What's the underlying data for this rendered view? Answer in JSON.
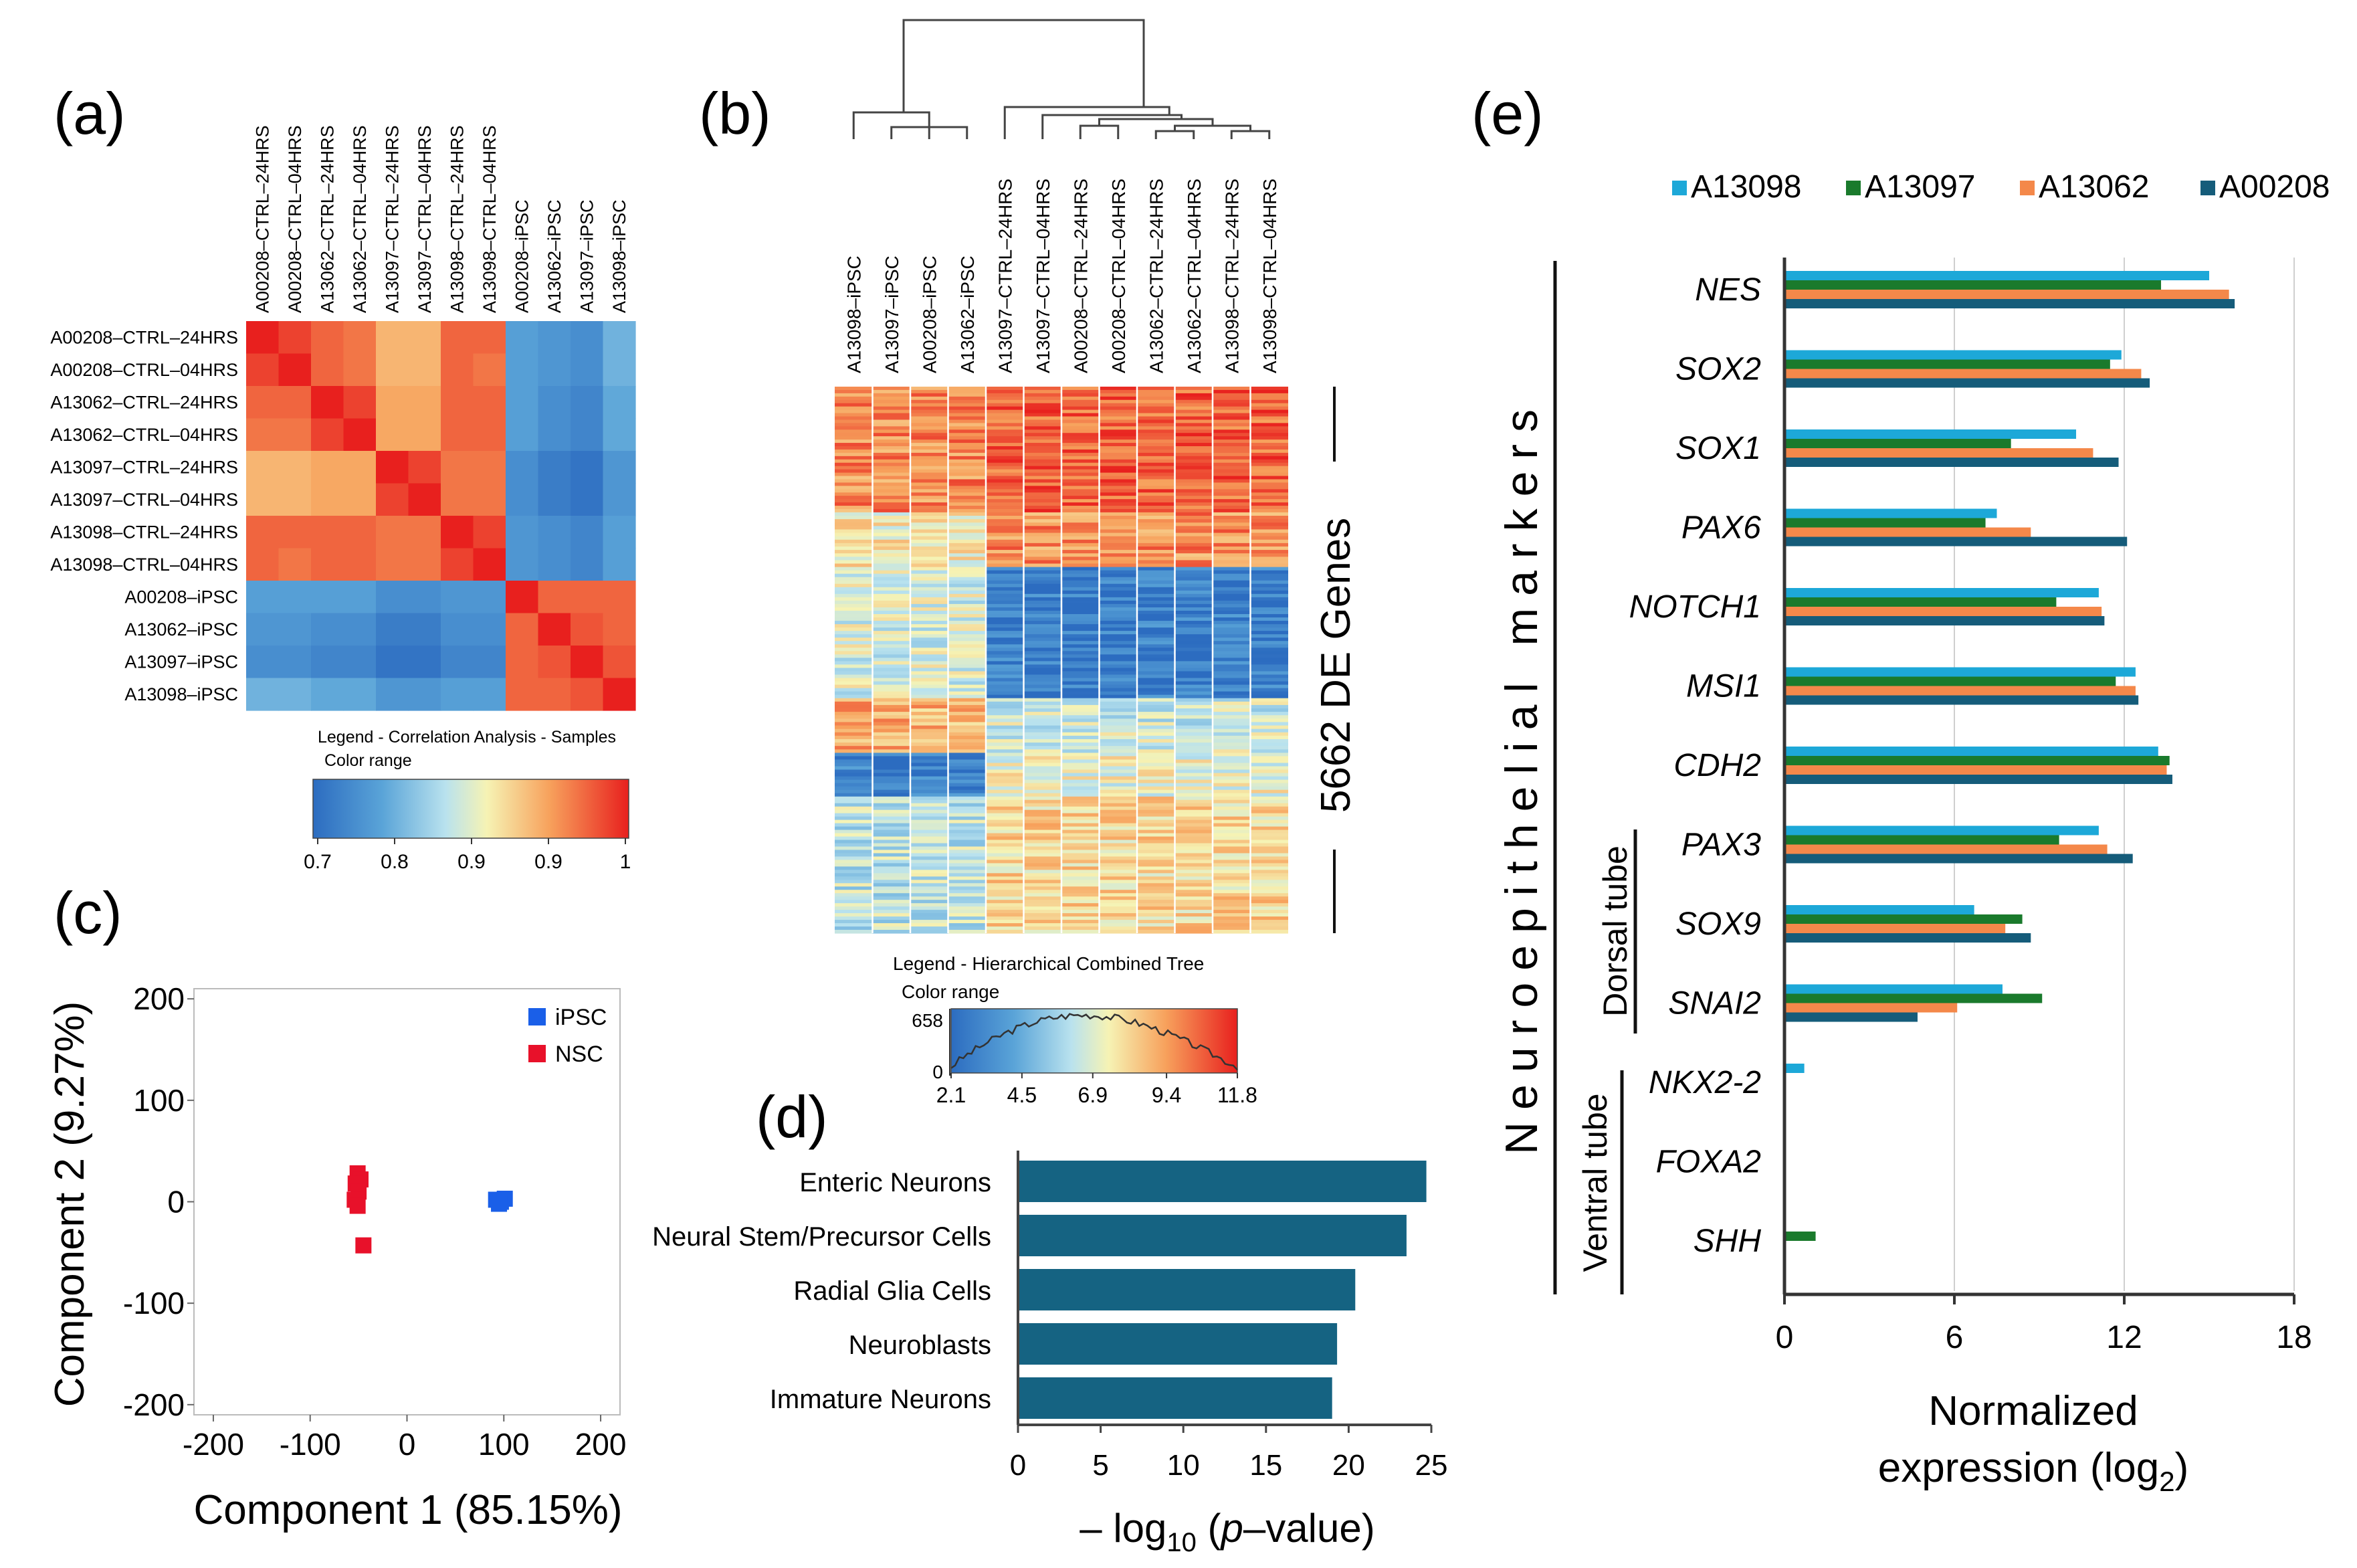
{
  "chart_data": [
    {
      "id": "a",
      "type": "heatmap",
      "panel_label": "(a)",
      "rows": [
        "A00208–CTRL–24HRS",
        "A00208–CTRL–04HRS",
        "A13062–CTRL–24HRS",
        "A13062–CTRL–04HRS",
        "A13097–CTRL–24HRS",
        "A13097–CTRL–04HRS",
        "A13098–CTRL–24HRS",
        "A13098–CTRL–04HRS",
        "A00208–iPSC",
        "A13062–iPSC",
        "A13097–iPSC",
        "A13098–iPSC"
      ],
      "columns": [
        "A00208–CTRL–24HRS",
        "A00208–CTRL–04HRS",
        "A13062–CTRL–24HRS",
        "A13062–CTRL–04HRS",
        "A13097–CTRL–24HRS",
        "A13097–CTRL–04HRS",
        "A13098–CTRL–24HRS",
        "A13098–CTRL–04HRS",
        "A00208–iPSC",
        "A13062–iPSC",
        "A13097–iPSC",
        "A13098–iPSC"
      ],
      "values": [
        [
          1.0,
          0.98,
          0.96,
          0.95,
          0.91,
          0.91,
          0.96,
          0.96,
          0.76,
          0.75,
          0.74,
          0.78
        ],
        [
          0.98,
          1.0,
          0.96,
          0.95,
          0.91,
          0.91,
          0.96,
          0.95,
          0.76,
          0.75,
          0.74,
          0.78
        ],
        [
          0.96,
          0.96,
          1.0,
          0.98,
          0.92,
          0.92,
          0.96,
          0.96,
          0.76,
          0.74,
          0.73,
          0.77
        ],
        [
          0.95,
          0.95,
          0.98,
          1.0,
          0.92,
          0.92,
          0.96,
          0.96,
          0.76,
          0.74,
          0.73,
          0.77
        ],
        [
          0.91,
          0.91,
          0.92,
          0.92,
          1.0,
          0.98,
          0.95,
          0.95,
          0.74,
          0.72,
          0.71,
          0.75
        ],
        [
          0.91,
          0.91,
          0.92,
          0.92,
          0.98,
          1.0,
          0.95,
          0.95,
          0.74,
          0.72,
          0.71,
          0.75
        ],
        [
          0.96,
          0.96,
          0.96,
          0.96,
          0.95,
          0.95,
          1.0,
          0.98,
          0.75,
          0.74,
          0.73,
          0.76
        ],
        [
          0.96,
          0.95,
          0.96,
          0.96,
          0.95,
          0.95,
          0.98,
          1.0,
          0.75,
          0.74,
          0.73,
          0.76
        ],
        [
          0.76,
          0.76,
          0.76,
          0.76,
          0.74,
          0.74,
          0.75,
          0.75,
          1.0,
          0.96,
          0.96,
          0.96
        ],
        [
          0.75,
          0.75,
          0.74,
          0.74,
          0.72,
          0.72,
          0.74,
          0.74,
          0.96,
          1.0,
          0.97,
          0.96
        ],
        [
          0.74,
          0.74,
          0.73,
          0.73,
          0.71,
          0.71,
          0.73,
          0.73,
          0.96,
          0.97,
          1.0,
          0.97
        ],
        [
          0.78,
          0.78,
          0.77,
          0.77,
          0.75,
          0.75,
          0.76,
          0.76,
          0.96,
          0.96,
          0.97,
          1.0
        ]
      ],
      "legend_title": "Legend - Correlation Analysis - Samples",
      "legend_subtitle": "Color range",
      "color_ticks": [
        "0.7",
        "0.8",
        "0.9",
        "0.9",
        "1"
      ],
      "color_range": [
        0.7,
        1.0
      ]
    },
    {
      "id": "b",
      "type": "heatmap",
      "panel_label": "(b)",
      "columns": [
        "A13098–iPSC",
        "A13097–iPSC",
        "A00208–iPSC",
        "A13062–iPSC",
        "A13097–CTRL–24HRS",
        "A13097–CTRL–04HRS",
        "A00208–CTRL–24HRS",
        "A00208–CTRL–04HRS",
        "A13062–CTRL–24HRS",
        "A13062–CTRL–04HRS",
        "A13098–CTRL–24HRS",
        "A13098–CTRL–04HRS"
      ],
      "side_label": "5662 DE Genes",
      "legend_title": "Legend - Hierarchical Combined Tree",
      "legend_subtitle": "Color range",
      "legend_y_ticks": [
        "658",
        "0"
      ],
      "color_ticks": [
        "2.1",
        "4.5",
        "6.9",
        "9.4",
        "11.8"
      ],
      "color_range": [
        2.1,
        11.8
      ],
      "row_blocks": [
        {
          "fraction": 0.23,
          "ipsc": 9.8,
          "nsc": 10.6
        },
        {
          "fraction": 0.1,
          "ipsc": 7.6,
          "nsc": 9.7
        },
        {
          "fraction": 0.24,
          "ipsc": 6.8,
          "nsc": 2.8
        },
        {
          "fraction": 0.1,
          "ipsc": 9.0,
          "nsc": 6.6
        },
        {
          "fraction": 0.08,
          "ipsc": 2.9,
          "nsc": 7.2
        },
        {
          "fraction": 0.25,
          "ipsc": 6.3,
          "nsc": 8.1
        }
      ]
    },
    {
      "id": "c",
      "type": "scatter",
      "panel_label": "(c)",
      "xlabel": "Component  1 (85.15%)",
      "ylabel": "Component  2 (9.27%)",
      "xlim": [
        -220,
        220
      ],
      "ylim": [
        -210,
        210
      ],
      "xticks": [
        "-200",
        "-100",
        "0",
        "100",
        "200"
      ],
      "yticks": [
        "200",
        "100",
        "0",
        "-100",
        "-200"
      ],
      "series": [
        {
          "name": "iPSC",
          "color": "#1a5fe8",
          "points": [
            [
              92,
              2
            ],
            [
              97,
              0
            ],
            [
              101,
              3
            ],
            [
              95,
              -2
            ]
          ]
        },
        {
          "name": "NSC",
          "color": "#e8112a",
          "points": [
            [
              -51,
              28
            ],
            [
              -48,
              22
            ],
            [
              -53,
              18
            ],
            [
              -50,
              10
            ],
            [
              -54,
              2
            ],
            [
              -51,
              -4
            ],
            [
              -45,
              -43
            ]
          ]
        }
      ]
    },
    {
      "id": "d",
      "type": "bar",
      "orientation": "horizontal",
      "panel_label": "(d)",
      "categories": [
        "Enteric Neurons",
        "Neural Stem/Precursor Cells",
        "Radial Glia Cells",
        "Neuroblasts",
        "Immature Neurons"
      ],
      "values": [
        24.7,
        23.5,
        20.4,
        19.3,
        19.0
      ],
      "xlim": [
        0,
        25
      ],
      "xticks": [
        "0",
        "5",
        "10",
        "15",
        "20",
        "25"
      ],
      "bar_color": "#156382",
      "xlabel_prefix": "– log",
      "xlabel_sub": "10",
      "xlabel_mid": " (",
      "xlabel_italic": "p",
      "xlabel_suffix": "–value)"
    },
    {
      "id": "e",
      "type": "bar",
      "orientation": "horizontal",
      "panel_label": "(e)",
      "series": [
        {
          "name": "A13098",
          "color": "#1da8d8",
          "values": [
            15.0,
            11.9,
            10.3,
            7.5,
            11.1,
            12.4,
            13.2,
            11.1,
            6.7,
            7.7,
            0.7,
            0,
            0
          ]
        },
        {
          "name": "A13097",
          "color": "#1a7a2c",
          "values": [
            13.3,
            11.5,
            8.0,
            7.1,
            9.6,
            11.7,
            13.6,
            9.7,
            8.4,
            9.1,
            0,
            0,
            1.1
          ]
        },
        {
          "name": "A13062",
          "color": "#f4884a",
          "values": [
            15.7,
            12.6,
            10.9,
            8.7,
            11.2,
            12.4,
            13.5,
            11.4,
            7.8,
            6.1,
            0,
            0,
            0
          ]
        },
        {
          "name": "A00208",
          "color": "#155c7a",
          "values": [
            15.9,
            12.9,
            11.8,
            12.1,
            11.3,
            12.5,
            13.7,
            12.3,
            8.7,
            4.7,
            0,
            0,
            0
          ]
        }
      ],
      "categories": [
        "NES",
        "SOX2",
        "SOX1",
        "PAX6",
        "NOTCH1",
        "MSI1",
        "CDH2",
        "PAX3",
        "SOX9",
        "SNAI2",
        "NKX2-2",
        "FOXA2",
        "SHH"
      ],
      "xlim": [
        0,
        18
      ],
      "xticks": [
        "0",
        "6",
        "12",
        "18"
      ],
      "xlabel_line1": "Normalized",
      "xlabel_line2_prefix": "expression (log",
      "xlabel_line2_sub": "2",
      "xlabel_line2_suffix": ")",
      "group_labels": {
        "outer": "Neuroepithelial  markers",
        "dorsal": "Dorsal tube",
        "ventral": "Ventral tube"
      }
    }
  ]
}
